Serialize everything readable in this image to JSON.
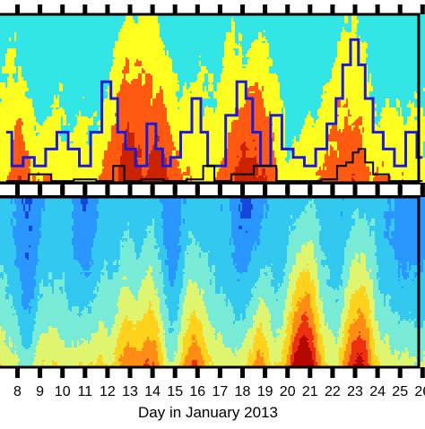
{
  "chart_data": [
    {
      "type": "heatmap",
      "panel": "top",
      "xlabel": "",
      "x": [
        8,
        9,
        10,
        11,
        12,
        13,
        14,
        15,
        16,
        17,
        18,
        19,
        20,
        21,
        22,
        23,
        24,
        25,
        26
      ],
      "colors": [
        "#33e6e6",
        "#ffff20",
        "#ff5a10",
        "#cc2200",
        "#8b0a00"
      ],
      "series": [
        {
          "x": [
            7.5,
            8,
            8.5,
            9,
            9.5,
            10,
            10.5,
            11,
            11.5,
            12,
            12.3,
            12.6,
            13,
            13.5,
            14,
            14.3,
            14.6,
            15,
            15.5,
            16,
            16.3,
            16.6,
            17,
            17.5,
            18,
            18.3,
            18.6,
            19,
            19.5,
            20,
            20.5,
            21,
            21.5,
            22,
            22.3,
            22.6,
            23,
            23.3,
            23.6,
            24,
            24.5,
            25,
            25.5,
            26
          ],
          "y": [
            0.3,
            0.1,
            0.15,
            0.1,
            0.2,
            0.3,
            0.2,
            0.1,
            0.3,
            0.6,
            0.5,
            0.3,
            0.2,
            0.1,
            0.35,
            0.2,
            0.1,
            0.15,
            0.3,
            0.5,
            0.3,
            0.1,
            0.1,
            0.4,
            0.6,
            0.5,
            0.3,
            0.1,
            0.4,
            0.2,
            0.15,
            0.1,
            0.2,
            0.35,
            0.5,
            0.7,
            0.85,
            0.7,
            0.5,
            0.3,
            0.2,
            0.1,
            0.3,
            0.15
          ]
        },
        {
          "x": [
            7.5,
            8,
            9,
            10,
            11,
            12,
            12.5,
            13,
            14,
            15,
            16,
            16.5,
            17,
            18,
            19,
            20,
            21,
            22,
            22.4,
            22.8,
            23,
            23.3,
            23.6,
            24,
            25,
            26
          ],
          "y": [
            0.01,
            0.01,
            0.05,
            0.01,
            0.02,
            0.01,
            0.1,
            0.01,
            0.02,
            0.01,
            0.02,
            0.1,
            0.01,
            0.05,
            0.1,
            0.01,
            0.01,
            0.02,
            0.1,
            0.12,
            0.18,
            0.2,
            0.12,
            0.05,
            0.01,
            0.01
          ]
        }
      ]
    },
    {
      "type": "heatmap",
      "panel": "bottom",
      "xlabel": "Day in January 2013",
      "x": [
        8,
        9,
        10,
        11,
        12,
        13,
        14,
        15,
        16,
        17,
        18,
        19,
        20,
        21,
        22,
        23,
        24,
        25,
        26
      ],
      "tick_labels": [
        "8",
        "9",
        "10",
        "11",
        "12",
        "13",
        "14",
        "15",
        "16",
        "17",
        "18",
        "19",
        "20",
        "21",
        "22",
        "23",
        "24",
        "25",
        "26"
      ],
      "colors": [
        "#1448dc",
        "#2a96ff",
        "#33c8f0",
        "#78ebd7",
        "#e0f56e",
        "#ffd21c",
        "#ff8c14",
        "#ee3010",
        "#b40800"
      ]
    }
  ]
}
